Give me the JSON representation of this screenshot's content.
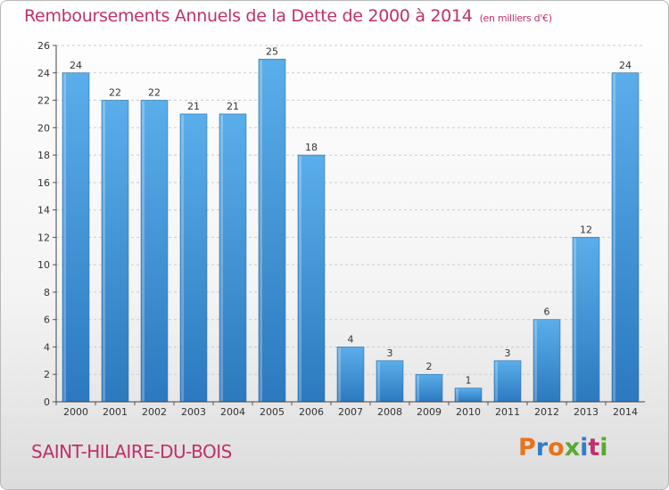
{
  "header": {
    "title": "Remboursements Annuels de la Dette de 2000 à 2014",
    "unit": "(en milliers d'€)"
  },
  "footer": {
    "commune": "SAINT-HILAIRE-DU-BOIS",
    "brand": "Proxiti",
    "brand_colors": [
      "#e8731a",
      "#2f7ec9",
      "#e8731a",
      "#5aa832",
      "#2f7ec9",
      "#c0306a",
      "#5aa832"
    ]
  },
  "colors": {
    "title": "#c0306a",
    "bar": "#3b8fd8",
    "grid": "#cccccc"
  },
  "chart_data": {
    "type": "bar",
    "title": "Remboursements Annuels de la Dette de 2000 à 2014",
    "subtitle": "(en milliers d'€)",
    "categories": [
      "2000",
      "2001",
      "2002",
      "2003",
      "2004",
      "2005",
      "2006",
      "2007",
      "2008",
      "2009",
      "2010",
      "2011",
      "2012",
      "2013",
      "2014"
    ],
    "values": [
      24,
      22,
      22,
      21,
      21,
      25,
      18,
      4,
      3,
      2,
      1,
      3,
      6,
      12,
      24
    ],
    "ylim": [
      0,
      26
    ],
    "yticks": [
      0,
      2,
      4,
      6,
      8,
      10,
      12,
      14,
      16,
      18,
      20,
      22,
      24,
      26
    ],
    "grid": true
  }
}
